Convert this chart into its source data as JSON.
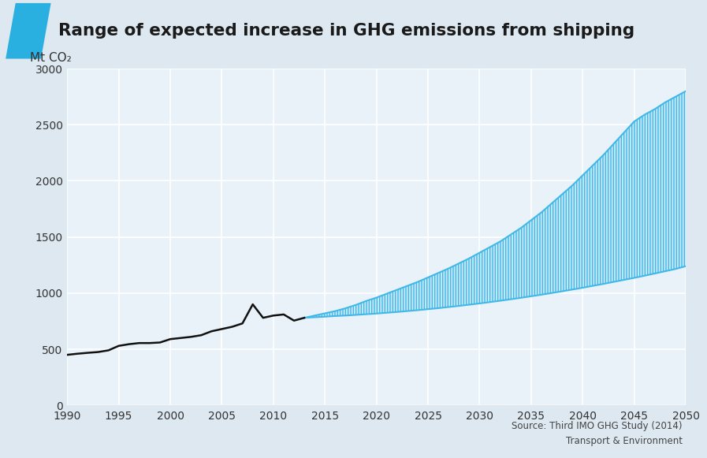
{
  "title": "Range of expected increase in GHG emissions from shipping",
  "ylabel": "Mt CO₂",
  "bg_color": "#dde8f0",
  "plot_bg_color": "#e8f2f8",
  "title_bar_color": "#29b0e0",
  "historical_years": [
    1990,
    1991,
    1992,
    1993,
    1994,
    1995,
    1996,
    1997,
    1998,
    1999,
    2000,
    2001,
    2002,
    2003,
    2004,
    2005,
    2006,
    2007,
    2008,
    2009,
    2010,
    2011,
    2012,
    2013
  ],
  "historical_values": [
    450,
    460,
    468,
    475,
    490,
    530,
    545,
    555,
    555,
    560,
    590,
    600,
    610,
    625,
    660,
    680,
    700,
    730,
    900,
    780,
    800,
    810,
    755,
    780
  ],
  "projection_years": [
    2013,
    2014,
    2015,
    2016,
    2017,
    2018,
    2019,
    2020,
    2021,
    2022,
    2023,
    2024,
    2025,
    2026,
    2027,
    2028,
    2029,
    2030,
    2031,
    2032,
    2033,
    2034,
    2035,
    2036,
    2037,
    2038,
    2039,
    2040,
    2041,
    2042,
    2043,
    2044,
    2045,
    2046,
    2047,
    2048,
    2049,
    2050
  ],
  "upper_values": [
    780,
    800,
    820,
    840,
    865,
    895,
    930,
    960,
    995,
    1030,
    1065,
    1100,
    1140,
    1180,
    1220,
    1265,
    1310,
    1360,
    1410,
    1460,
    1520,
    1580,
    1650,
    1720,
    1800,
    1880,
    1960,
    2050,
    2140,
    2230,
    2330,
    2430,
    2530,
    2590,
    2640,
    2700,
    2750,
    2800
  ],
  "lower_values": [
    780,
    785,
    790,
    796,
    800,
    806,
    812,
    818,
    825,
    832,
    840,
    848,
    857,
    866,
    876,
    886,
    897,
    908,
    920,
    932,
    945,
    958,
    972,
    986,
    1001,
    1016,
    1032,
    1048,
    1065,
    1082,
    1100,
    1118,
    1136,
    1155,
    1175,
    1195,
    1215,
    1240
  ],
  "hatch_color": "#40b8e8",
  "hatch_face_color": "#c8e8f8",
  "line_color": "#111111",
  "xlim": [
    1990,
    2050
  ],
  "ylim": [
    0,
    3000
  ],
  "yticks": [
    0,
    500,
    1000,
    1500,
    2000,
    2500,
    3000
  ],
  "xticks": [
    1990,
    1995,
    2000,
    2005,
    2010,
    2015,
    2020,
    2025,
    2030,
    2035,
    2040,
    2045,
    2050
  ],
  "source_text": "Source: Third IMO GHG Study (2014)\nTransport & Environment"
}
